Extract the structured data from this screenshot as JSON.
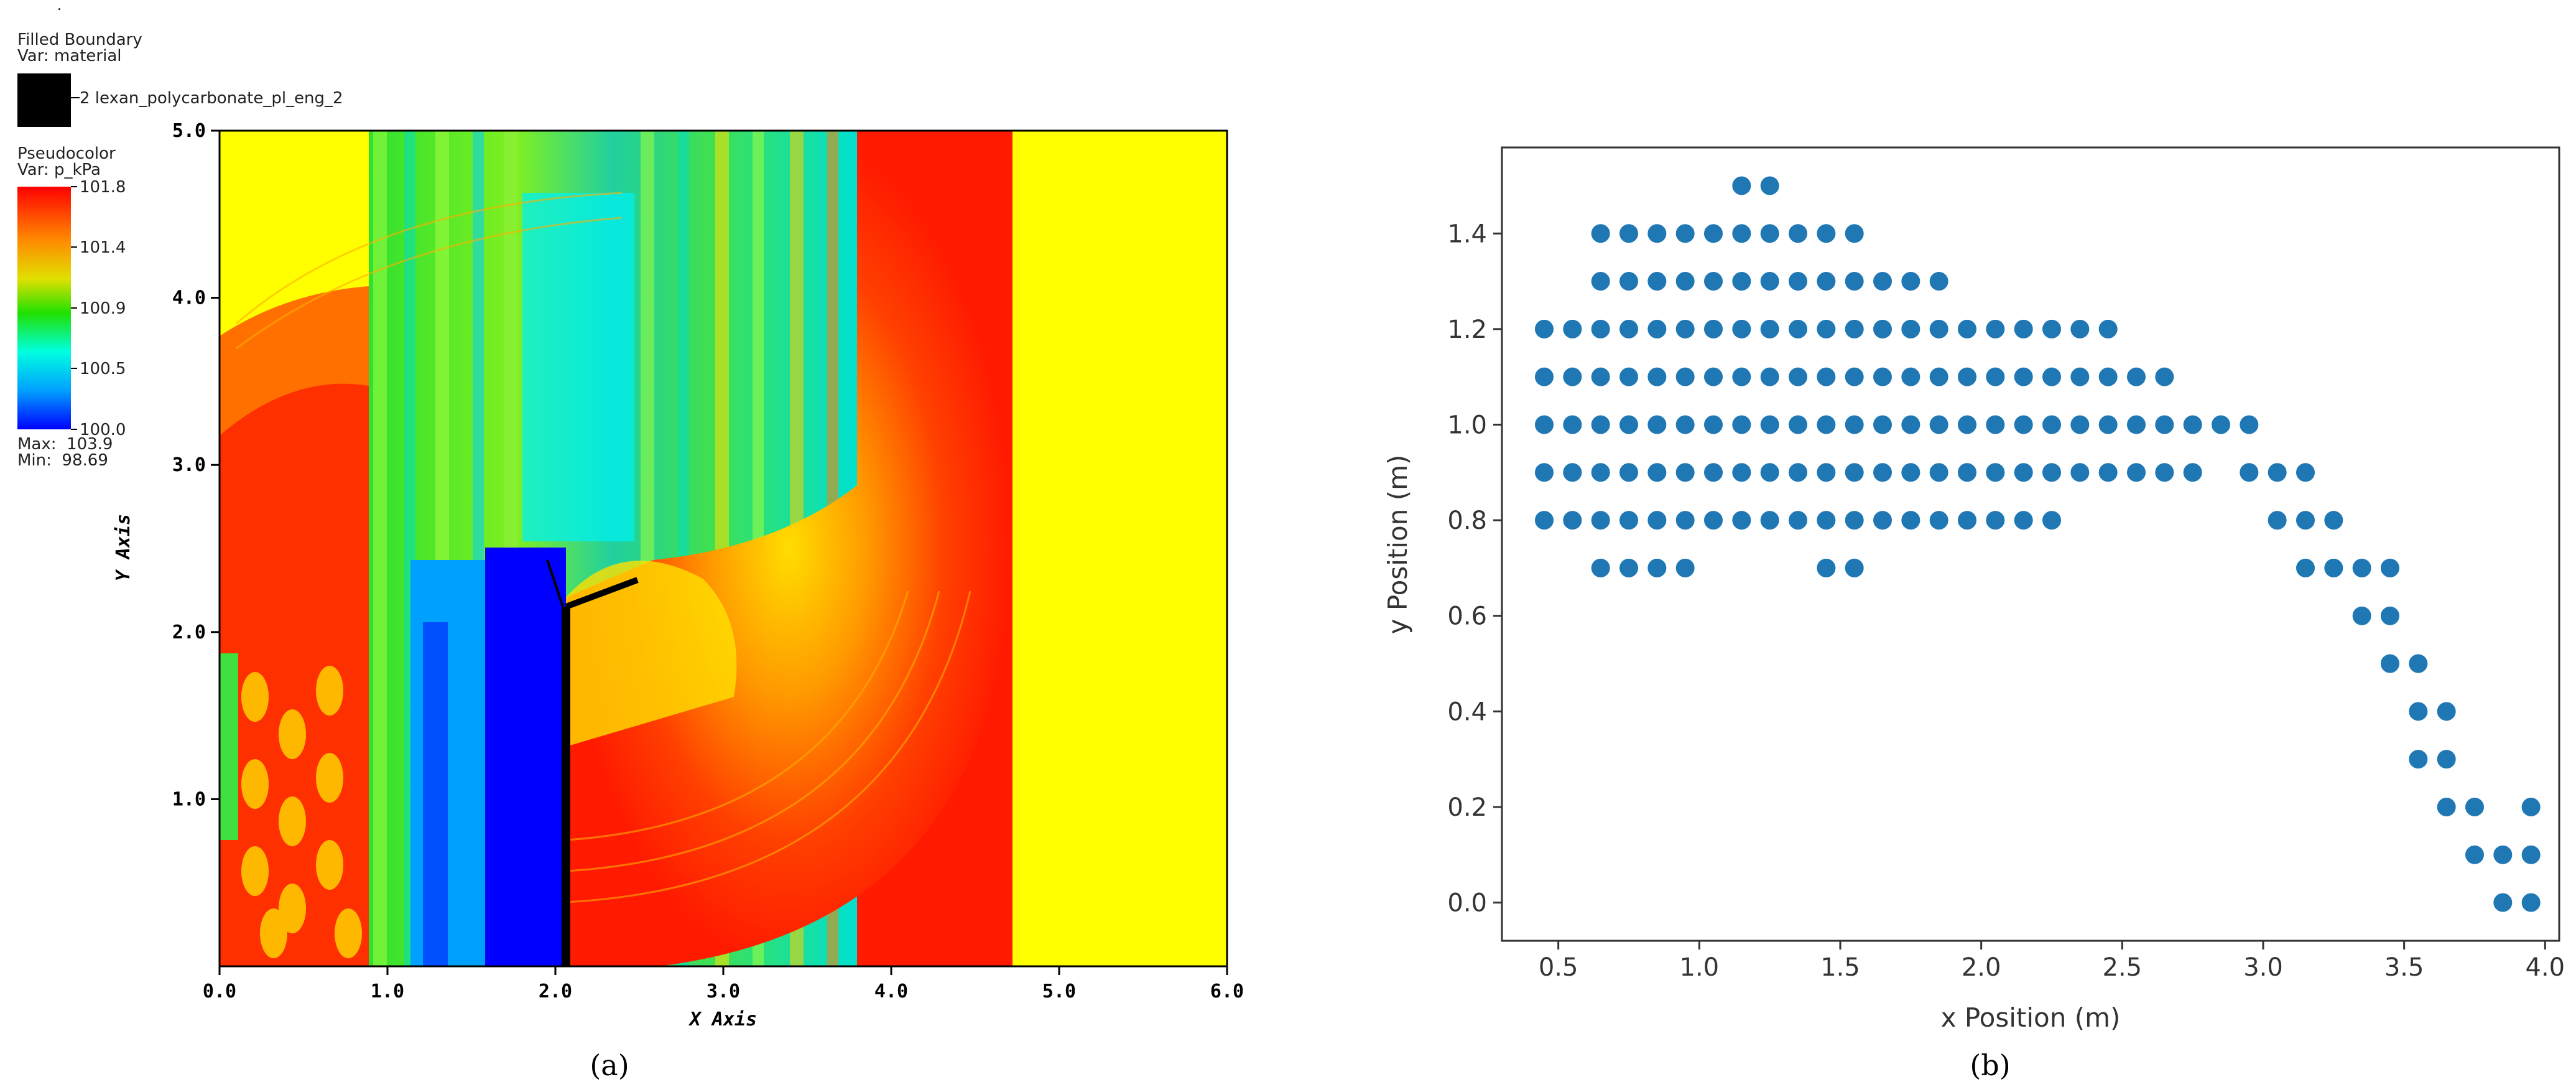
{
  "panel_a": {
    "dot": ".",
    "legend_boundary": {
      "title": "Filled Boundary",
      "var": "Var: material",
      "material_label": "2 lexan_polycarbonate_pl_eng_2"
    },
    "legend_pseudo": {
      "title": "Pseudocolor",
      "var": "Var: p_kPa",
      "ticks": [
        "101.8",
        "101.4",
        "100.9",
        "100.5",
        "100.0"
      ],
      "max": "Max:  103.9",
      "min": "Min:  98.69"
    },
    "caption": "(a)",
    "colors": {
      "red": "#ff1a00",
      "orange": "#ff8a00",
      "yellow": "#ffff00",
      "green": "#26e000",
      "cyan": "#00ffe0",
      "blue": "#0000ff"
    }
  },
  "panel_b": {
    "caption": "(b)",
    "colors": {
      "marker": "#1f77b4"
    }
  },
  "chart_data": [
    {
      "type": "heatmap",
      "title": "",
      "xlabel": "X Axis",
      "ylabel": "Y Axis",
      "xlim": [
        0,
        6
      ],
      "ylim": [
        0,
        5
      ],
      "x_ticks": [
        "0.0",
        "1.0",
        "2.0",
        "3.0",
        "4.0",
        "5.0",
        "6.0"
      ],
      "y_ticks": [
        "1.0",
        "2.0",
        "3.0",
        "4.0",
        "5.0"
      ],
      "colorbar": {
        "var": "p_kPa",
        "range": [
          100.0,
          101.8
        ],
        "max": 103.9,
        "min": 98.69
      }
    },
    {
      "type": "scatter",
      "title": "",
      "xlabel": "x Position (m)",
      "ylabel": "y Position (m)",
      "xlim": [
        0.3,
        4.05
      ],
      "ylim": [
        -0.08,
        1.58
      ],
      "x_ticks": [
        "0.5",
        "1.0",
        "1.5",
        "2.0",
        "2.5",
        "3.0",
        "3.5",
        "4.0"
      ],
      "y_ticks": [
        "0.0",
        "0.2",
        "0.4",
        "0.6",
        "0.8",
        "1.0",
        "1.2",
        "1.4"
      ],
      "grid": false,
      "rows": [
        {
          "y": 1.5,
          "x": [
            1.15,
            1.25
          ]
        },
        {
          "y": 1.4,
          "x": [
            0.65,
            0.75,
            0.85,
            0.95,
            1.05,
            1.15,
            1.25,
            1.35,
            1.45,
            1.55
          ]
        },
        {
          "y": 1.3,
          "x": [
            0.65,
            0.75,
            0.85,
            0.95,
            1.05,
            1.15,
            1.25,
            1.35,
            1.45,
            1.55,
            1.65,
            1.75,
            1.85
          ]
        },
        {
          "y": 1.2,
          "x": [
            0.45,
            0.55,
            0.65,
            0.75,
            0.85,
            0.95,
            1.05,
            1.15,
            1.25,
            1.35,
            1.45,
            1.55,
            1.65,
            1.75,
            1.85,
            1.95,
            2.05,
            2.15,
            2.25,
            2.35,
            2.45
          ]
        },
        {
          "y": 1.1,
          "x": [
            0.45,
            0.55,
            0.65,
            0.75,
            0.85,
            0.95,
            1.05,
            1.15,
            1.25,
            1.35,
            1.45,
            1.55,
            1.65,
            1.75,
            1.85,
            1.95,
            2.05,
            2.15,
            2.25,
            2.35,
            2.45,
            2.55,
            2.65
          ]
        },
        {
          "y": 1.0,
          "x": [
            0.45,
            0.55,
            0.65,
            0.75,
            0.85,
            0.95,
            1.05,
            1.15,
            1.25,
            1.35,
            1.45,
            1.55,
            1.65,
            1.75,
            1.85,
            1.95,
            2.05,
            2.15,
            2.25,
            2.35,
            2.45,
            2.55,
            2.65,
            2.75,
            2.85,
            2.95
          ]
        },
        {
          "y": 0.9,
          "x": [
            0.45,
            0.55,
            0.65,
            0.75,
            0.85,
            0.95,
            1.05,
            1.15,
            1.25,
            1.35,
            1.45,
            1.55,
            1.65,
            1.75,
            1.85,
            1.95,
            2.05,
            2.15,
            2.25,
            2.35,
            2.45,
            2.55,
            2.65,
            2.75,
            2.95,
            3.05,
            3.15
          ]
        },
        {
          "y": 0.8,
          "x": [
            0.45,
            0.55,
            0.65,
            0.75,
            0.85,
            0.95,
            1.05,
            1.15,
            1.25,
            1.35,
            1.45,
            1.55,
            1.65,
            1.75,
            1.85,
            1.95,
            2.05,
            2.15,
            2.25,
            3.05,
            3.15,
            3.25
          ]
        },
        {
          "y": 0.7,
          "x": [
            0.65,
            0.75,
            0.85,
            0.95,
            1.45,
            1.55,
            3.15,
            3.25,
            3.35,
            3.45
          ]
        },
        {
          "y": 0.6,
          "x": [
            3.35,
            3.45
          ]
        },
        {
          "y": 0.5,
          "x": [
            3.45,
            3.55
          ]
        },
        {
          "y": 0.4,
          "x": [
            3.55,
            3.65
          ]
        },
        {
          "y": 0.3,
          "x": [
            3.55,
            3.65
          ]
        },
        {
          "y": 0.2,
          "x": [
            3.65,
            3.75,
            3.95
          ]
        },
        {
          "y": 0.1,
          "x": [
            3.75,
            3.85,
            3.95
          ]
        },
        {
          "y": 0.0,
          "x": [
            3.85,
            3.95
          ]
        }
      ]
    }
  ]
}
